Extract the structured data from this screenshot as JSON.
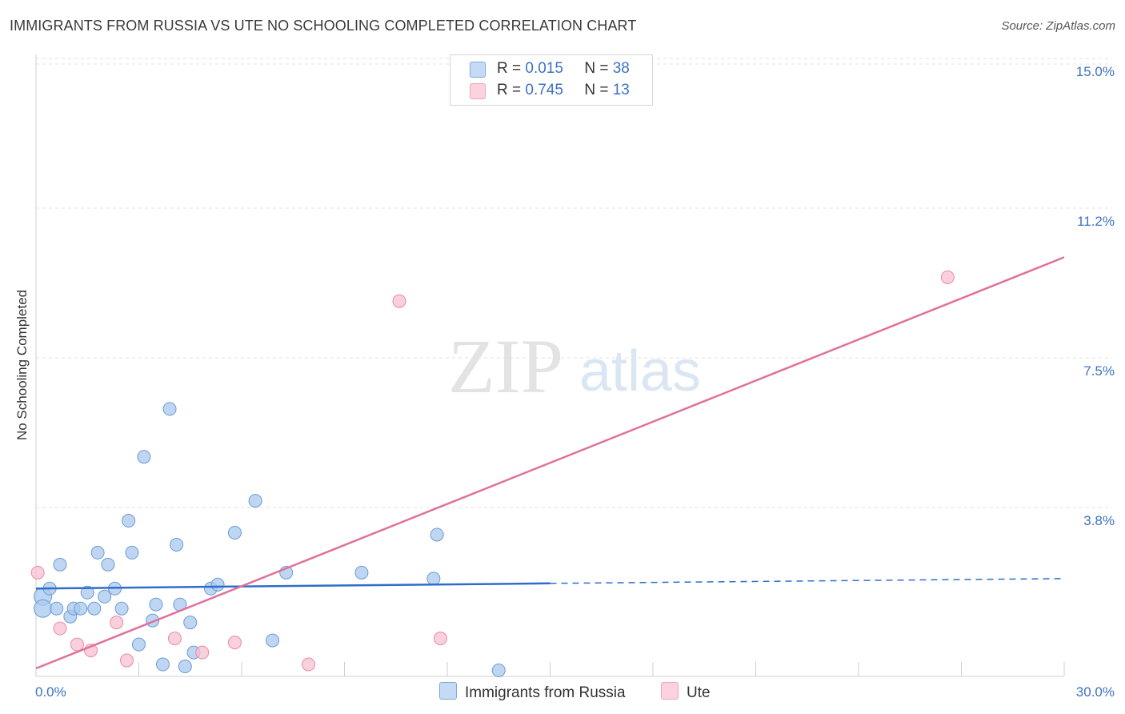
{
  "title": "IMMIGRANTS FROM RUSSIA VS UTE NO SCHOOLING COMPLETED CORRELATION CHART",
  "source": "Source: ZipAtlas.com",
  "watermark": {
    "zip": "ZIP",
    "atlas": "atlas"
  },
  "legend": {
    "r_label": "R =",
    "n_label": "N =",
    "series": [
      {
        "r": "0.015",
        "n": "38"
      },
      {
        "r": "0.745",
        "n": "13"
      }
    ]
  },
  "chart_data": {
    "type": "scatter",
    "title": "IMMIGRANTS FROM RUSSIA VS UTE NO SCHOOLING COMPLETED CORRELATION CHART",
    "xlabel": "",
    "ylabel": "No Schooling Completed",
    "xlim": [
      0,
      30
    ],
    "ylim": [
      0,
      15
    ],
    "y_ticks": [
      {
        "value": 3.75,
        "label": "3.8%"
      },
      {
        "value": 7.5,
        "label": "7.5%"
      },
      {
        "value": 11.25,
        "label": "11.2%"
      },
      {
        "value": 15.0,
        "label": "15.0%"
      }
    ],
    "x_tick_labels": [
      {
        "value": 0,
        "label": "0.0%"
      },
      {
        "value": 30,
        "label": "30.0%"
      }
    ],
    "grid": true,
    "legend_position": "bottom",
    "series": [
      {
        "name": "Immigrants from Russia",
        "color": "#a9c8ee",
        "edge": "#6b9ad6",
        "line_color": "#2f6ec8",
        "trend": {
          "x0": 0,
          "y0": 2.2,
          "x1": 15,
          "y1": 2.33,
          "x_dash_end": 30,
          "y_dash_end": 2.45
        },
        "points": [
          [
            0.2,
            2.0
          ],
          [
            0.2,
            1.7
          ],
          [
            0.4,
            2.2
          ],
          [
            0.6,
            1.7
          ],
          [
            0.7,
            2.8
          ],
          [
            1.0,
            1.5
          ],
          [
            1.1,
            1.7
          ],
          [
            1.3,
            1.7
          ],
          [
            1.5,
            2.1
          ],
          [
            1.7,
            1.7
          ],
          [
            1.8,
            3.1
          ],
          [
            2.0,
            2.0
          ],
          [
            2.1,
            2.8
          ],
          [
            2.3,
            2.2
          ],
          [
            2.5,
            1.7
          ],
          [
            2.7,
            3.9
          ],
          [
            2.8,
            3.1
          ],
          [
            3.0,
            0.8
          ],
          [
            3.15,
            5.5
          ],
          [
            3.4,
            1.4
          ],
          [
            3.5,
            1.8
          ],
          [
            3.7,
            0.3
          ],
          [
            3.9,
            6.7
          ],
          [
            4.1,
            3.3
          ],
          [
            4.2,
            1.8
          ],
          [
            4.35,
            0.25
          ],
          [
            4.5,
            1.35
          ],
          [
            4.6,
            0.6
          ],
          [
            5.1,
            2.2
          ],
          [
            5.3,
            2.3
          ],
          [
            5.8,
            3.6
          ],
          [
            6.4,
            4.4
          ],
          [
            6.9,
            0.9
          ],
          [
            7.3,
            2.6
          ],
          [
            9.5,
            2.6
          ],
          [
            11.6,
            2.45
          ],
          [
            11.7,
            3.55
          ],
          [
            13.5,
            0.15
          ]
        ]
      },
      {
        "name": "Ute",
        "color": "#f7c0d0",
        "edge": "#e88aa6",
        "line_color": "#e0709a",
        "trend": {
          "x0": 0,
          "y0": 0.2,
          "x1": 30,
          "y1": 10.5
        },
        "points": [
          [
            0.05,
            2.6
          ],
          [
            0.7,
            1.2
          ],
          [
            1.2,
            0.8
          ],
          [
            1.6,
            0.65
          ],
          [
            2.65,
            0.4
          ],
          [
            2.35,
            1.35
          ],
          [
            4.05,
            0.95
          ],
          [
            4.85,
            0.6
          ],
          [
            5.8,
            0.85
          ],
          [
            7.95,
            0.3
          ],
          [
            10.6,
            9.4
          ],
          [
            11.8,
            0.95
          ],
          [
            26.6,
            10.0
          ]
        ]
      }
    ]
  }
}
